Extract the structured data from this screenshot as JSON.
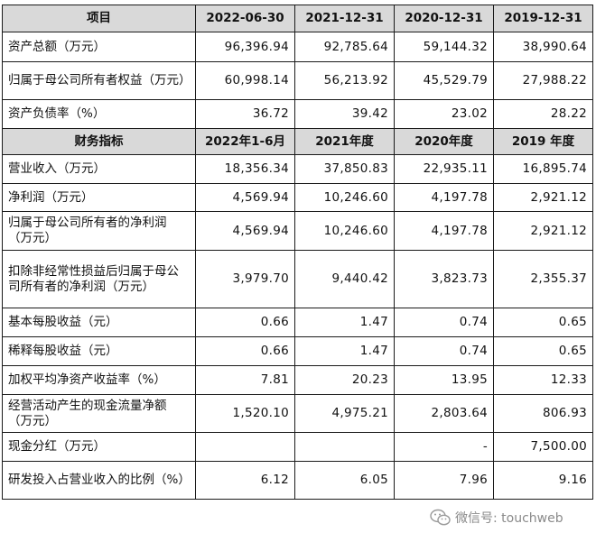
{
  "header1": [
    "项目",
    "2022-06-30",
    "2021-12-31",
    "2020-12-31",
    "2019-12-31"
  ],
  "section1": [
    {
      "label": "资产总额（万元）",
      "values": [
        "96,396.94",
        "92,785.64",
        "59,144.32",
        "38,990.64"
      ]
    },
    {
      "label": "归属于母公司所有者权益（万元）",
      "values": [
        "60,998.14",
        "56,213.92",
        "45,529.79",
        "27,988.22"
      ]
    },
    {
      "label": "资产负债率（%）",
      "values": [
        "36.72",
        "39.42",
        "23.02",
        "28.22"
      ]
    }
  ],
  "header2": [
    "财务指标",
    "2022年1-6月",
    "2021年度",
    "2020年度",
    "2019 年度"
  ],
  "section2": [
    {
      "label": "营业收入（万元）",
      "values": [
        "18,356.34",
        "37,850.83",
        "22,935.11",
        "16,895.74"
      ]
    },
    {
      "label": "净利润（万元）",
      "values": [
        "4,569.94",
        "10,246.60",
        "4,197.78",
        "2,921.12"
      ]
    },
    {
      "label": "归属于母公司所有者的净利润（万元）",
      "values": [
        "4,569.94",
        "10,246.60",
        "4,197.78",
        "2,921.12"
      ]
    },
    {
      "label": "扣除非经常性损益后归属于母公司所有者的净利润（万元）",
      "values": [
        "3,979.70",
        "9,440.42",
        "3,823.73",
        "2,355.37"
      ]
    },
    {
      "label": "基本每股收益（元）",
      "values": [
        "0.66",
        "1.47",
        "0.74",
        "0.65"
      ]
    },
    {
      "label": "稀释每股收益（元）",
      "values": [
        "0.66",
        "1.47",
        "0.74",
        "0.65"
      ]
    },
    {
      "label": "加权平均净资产收益率（%）",
      "values": [
        "7.81",
        "20.23",
        "13.95",
        "12.33"
      ]
    },
    {
      "label": "经营活动产生的现金流量净额（万元）",
      "values": [
        "1,520.10",
        "4,975.21",
        "2,803.64",
        "806.93"
      ]
    },
    {
      "label": "现金分红（万元）",
      "values": [
        "",
        "",
        "-",
        "7,500.00"
      ]
    },
    {
      "label": "研发投入占营业收入的比例（%）",
      "values": [
        "6.12",
        "6.05",
        "7.96",
        "9.16"
      ]
    }
  ],
  "watermark": {
    "text": "微信号: touchweb",
    "icon": "wechat-icon"
  }
}
